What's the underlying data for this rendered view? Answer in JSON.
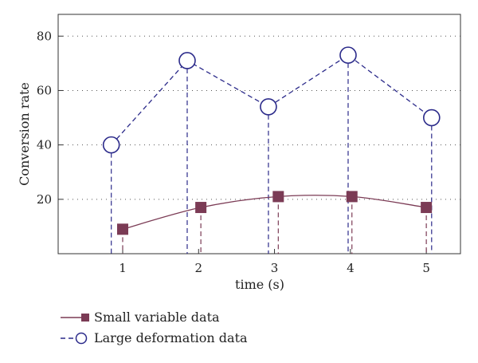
{
  "chart_data": {
    "type": "line",
    "xlabel": "time (s)",
    "ylabel": "Conversion rate",
    "xlim": [
      0.15,
      5.45
    ],
    "ylim": [
      0,
      88
    ],
    "xticks": [
      "1",
      "2",
      "3",
      "4",
      "5"
    ],
    "yticks": [
      "20",
      "40",
      "60",
      "80"
    ],
    "grid": "horizontal dotted",
    "legend_position": "bottom-left",
    "series": [
      {
        "name": "Small variable data",
        "marker": "square",
        "color": "#7b3b55",
        "x": [
          1.0,
          2.03,
          3.05,
          4.02,
          5.0
        ],
        "y": [
          9,
          17,
          21,
          21,
          17
        ]
      },
      {
        "name": "Large deformation data",
        "marker": "circle",
        "color": "#2b2a8a",
        "x": [
          0.85,
          1.85,
          2.92,
          3.97,
          5.07
        ],
        "y": [
          40,
          71,
          54,
          73,
          50
        ]
      }
    ]
  }
}
